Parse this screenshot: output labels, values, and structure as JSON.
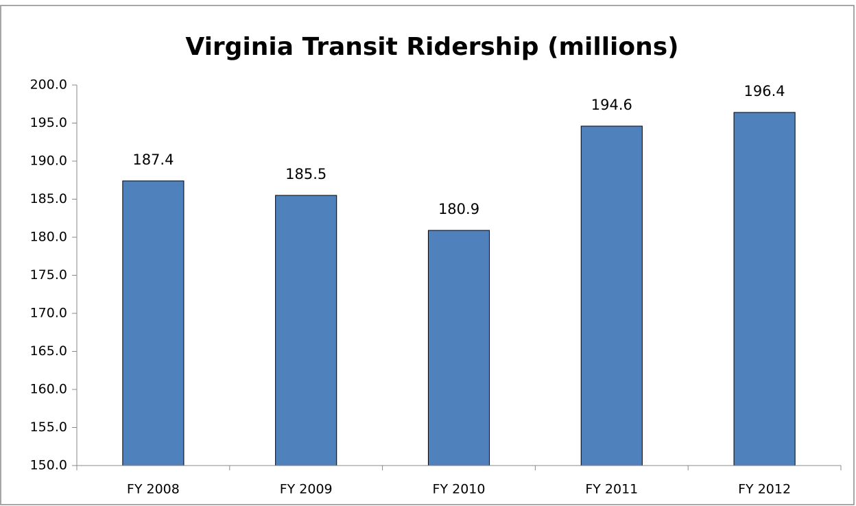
{
  "chart_data": {
    "type": "bar",
    "title": "Virginia Transit Ridership (millions)",
    "categories": [
      "FY 2008",
      "FY 2009",
      "FY 2010",
      "FY 2011",
      "FY 2012"
    ],
    "values": [
      187.4,
      185.5,
      180.9,
      194.6,
      196.4
    ],
    "color": "#4f81bd",
    "ylim": [
      150,
      200
    ],
    "yticks": [
      {
        "value": 150,
        "label": "150.0"
      },
      {
        "value": 155,
        "label": "155.0"
      },
      {
        "value": 160,
        "label": "160.0"
      },
      {
        "value": 165,
        "label": "165.0"
      },
      {
        "value": 170,
        "label": "170.0"
      },
      {
        "value": 175,
        "label": "175.0"
      },
      {
        "value": 180,
        "label": "180.0"
      },
      {
        "value": 185,
        "label": "185.0"
      },
      {
        "value": 190,
        "label": "190.0"
      },
      {
        "value": 195,
        "label": "195.0"
      },
      {
        "value": 200,
        "label": "200.0"
      }
    ],
    "grid": false
  }
}
